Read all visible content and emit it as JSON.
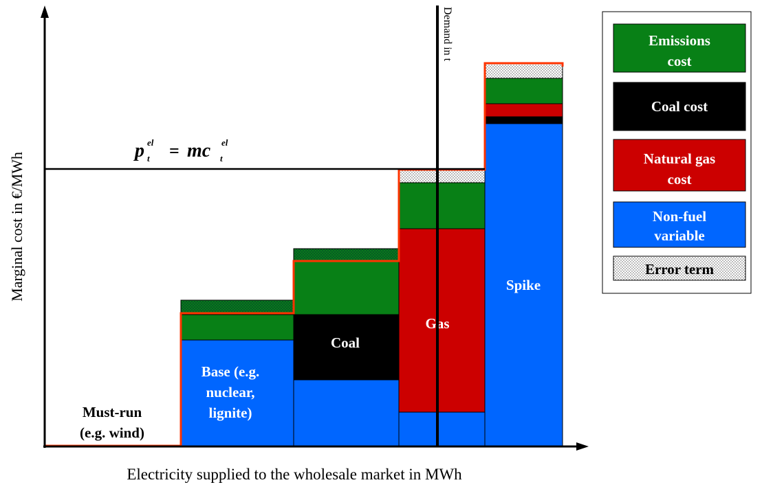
{
  "axes": {
    "y_label": "Marginal cost in €/MWh",
    "x_label": "Electricity supplied to the wholesale market in MWh"
  },
  "demand_label": "Demand in t",
  "equation": {
    "lhs": "p",
    "lhs_sub": "t",
    "lhs_sup": "el",
    "operator": "=",
    "rhs": "mc",
    "rhs_sub": "t",
    "rhs_sup": "el"
  },
  "blocks": [
    {
      "lines": [
        "Must-run",
        "(e.g. wind)"
      ]
    },
    {
      "lines": [
        "Base (e.g.",
        "nuclear,",
        "lignite)"
      ]
    },
    {
      "lines": [
        "Coal"
      ]
    },
    {
      "lines": [
        "Gas"
      ]
    },
    {
      "lines": [
        "Spike"
      ]
    }
  ],
  "legend": {
    "items": [
      {
        "lines": [
          "Emissions",
          "cost"
        ]
      },
      {
        "lines": [
          "Coal cost"
        ]
      },
      {
        "lines": [
          "Natural gas",
          "cost"
        ]
      },
      {
        "lines": [
          "Non-fuel",
          "variable"
        ]
      },
      {
        "lines": [
          "Error term"
        ]
      }
    ]
  }
}
